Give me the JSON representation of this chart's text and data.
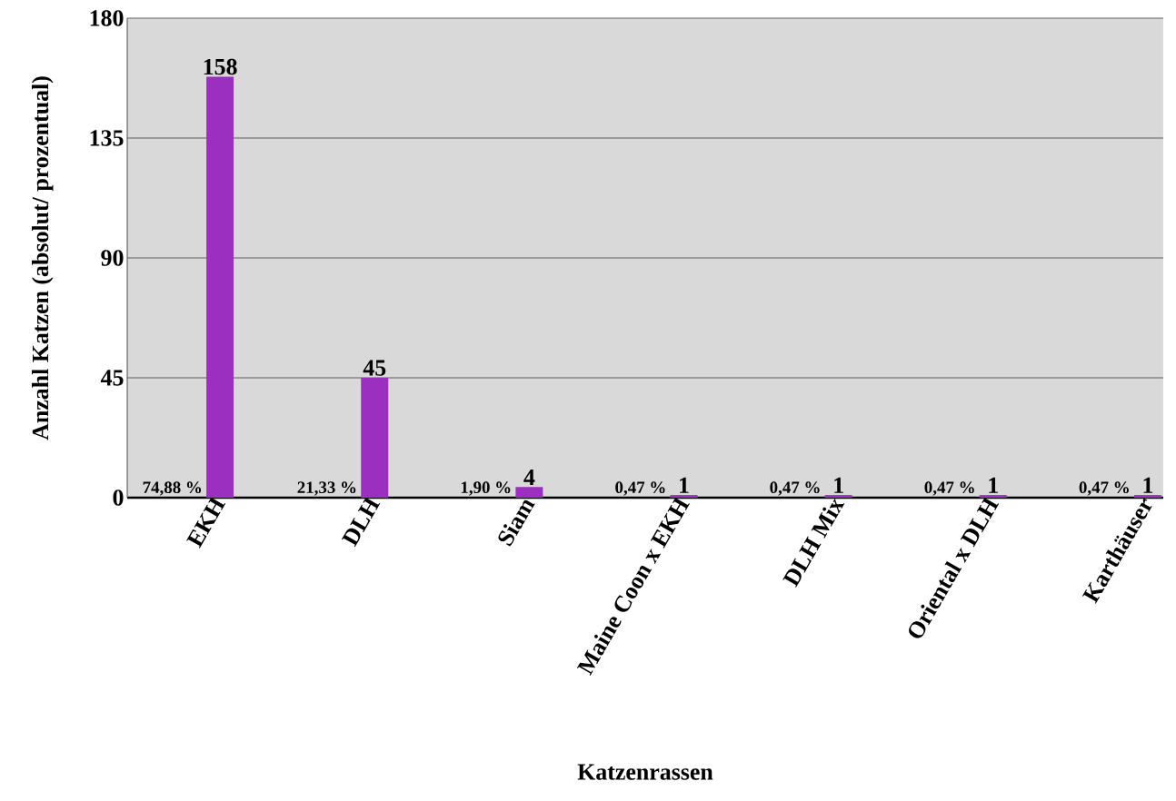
{
  "chart_data": {
    "type": "bar",
    "xlabel": "Katzenrassen",
    "ylabel": "Anzahl Katzen (absolut/ prozentual)",
    "categories": [
      "EKH",
      "DLH",
      "Siam",
      "Maine Coon x EKH",
      "DLH Mix",
      "Oriental x DLH",
      "Karthäuser"
    ],
    "values": [
      158,
      45,
      4,
      1,
      1,
      1,
      1
    ],
    "value_labels": [
      "158",
      "45",
      "4",
      "1",
      "1",
      "1",
      "1"
    ],
    "color": "#9b2fc0",
    "ylim": [
      0,
      180
    ],
    "yticks": [
      0,
      45,
      90,
      135,
      180
    ],
    "grid": "y",
    "annotations": [
      {
        "text": "74,88 %",
        "x": "EKH",
        "y": 0
      },
      {
        "text": "21,33 %",
        "x": "DLH",
        "y": 0
      },
      {
        "text": "1,90 %",
        "x": "Siam",
        "y": 0
      },
      {
        "text": "0,47 %",
        "x": "Maine Coon x EKH",
        "y": 0
      },
      {
        "text": "0,47 %",
        "x": "DLH Mix",
        "y": 0
      },
      {
        "text": "0,47 %",
        "x": "Oriental x DLH",
        "y": 0
      },
      {
        "text": "0,47 %",
        "x": "Karthäuser",
        "y": 0
      }
    ]
  }
}
